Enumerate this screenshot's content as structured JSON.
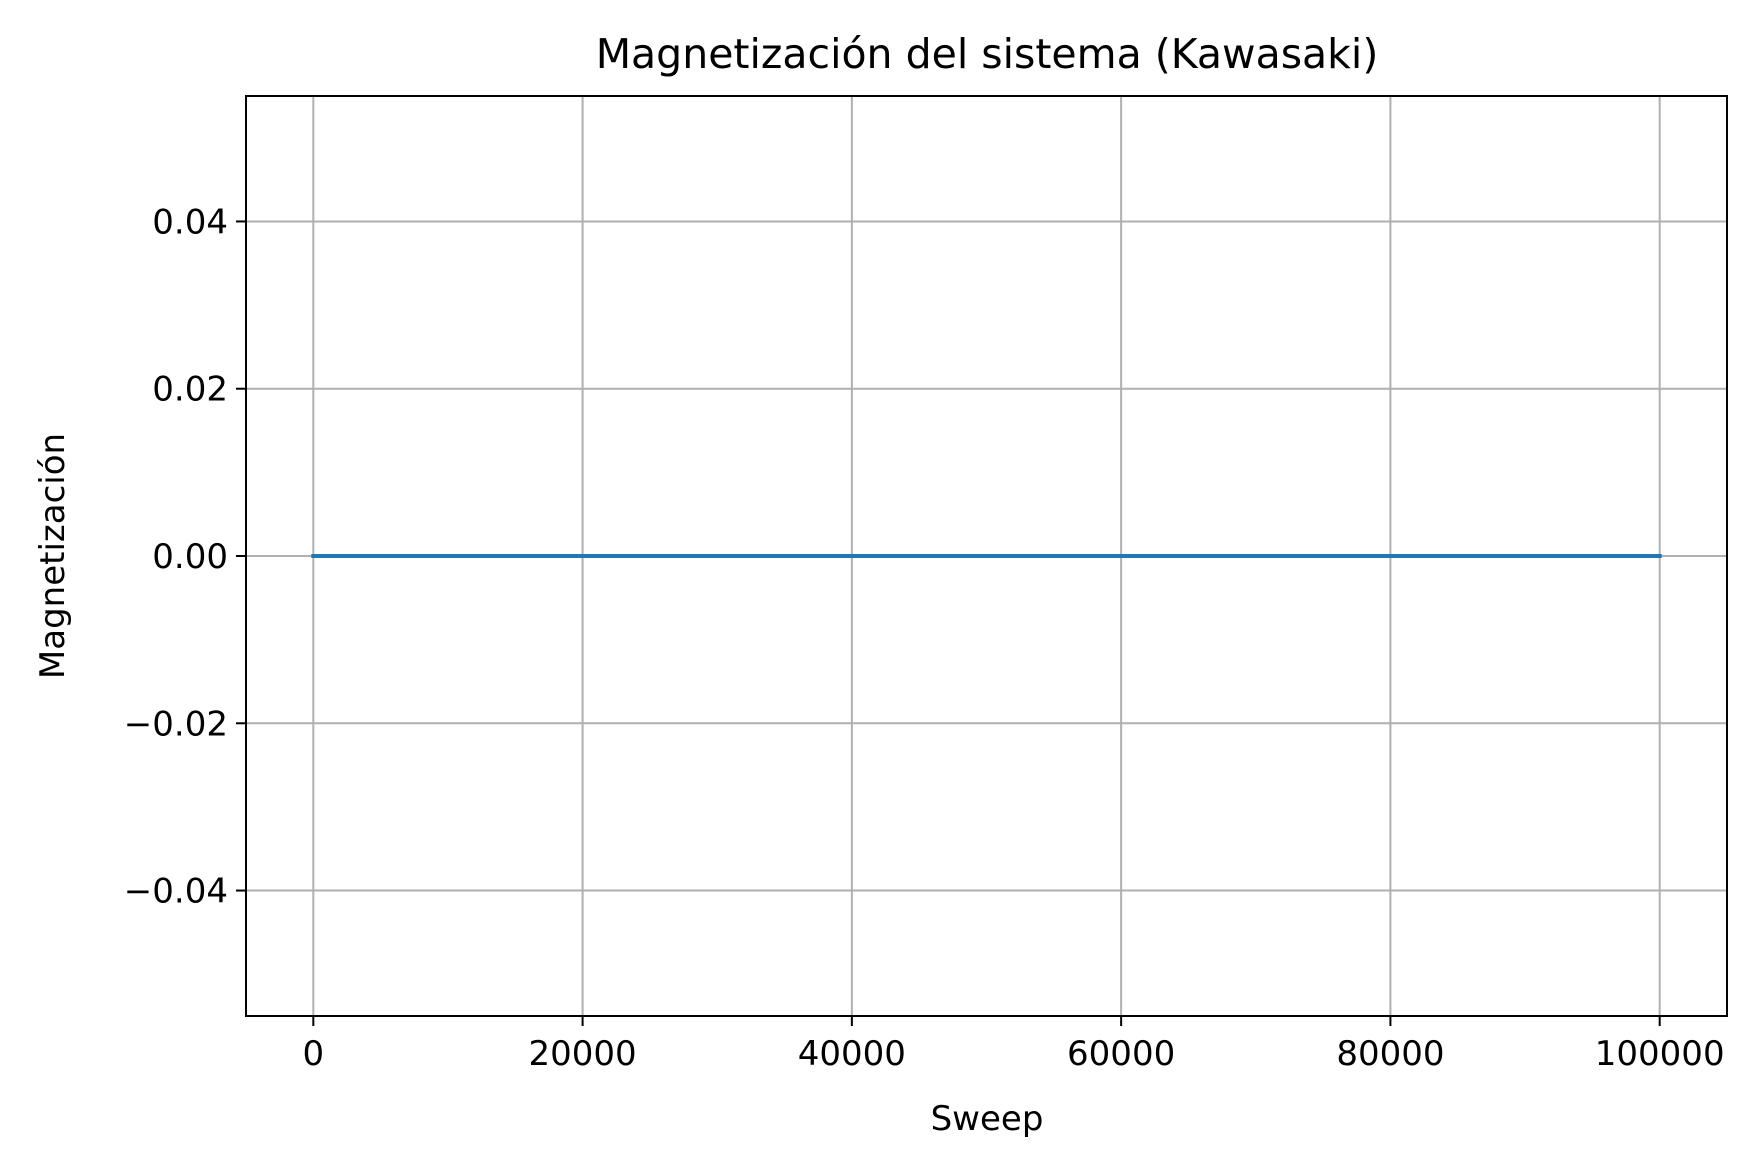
{
  "chart_data": {
    "type": "line",
    "title": "Magnetización del sistema (Kawasaki)",
    "xlabel": "Sweep",
    "ylabel": "Magnetización",
    "xlim": [
      -5000,
      105000
    ],
    "ylim": [
      -0.055,
      0.055
    ],
    "x_ticks": [
      0,
      20000,
      40000,
      60000,
      80000,
      100000
    ],
    "x_tick_labels": [
      "0",
      "20000",
      "40000",
      "60000",
      "80000",
      "100000"
    ],
    "y_ticks": [
      -0.04,
      -0.02,
      0.0,
      0.02,
      0.04
    ],
    "y_tick_labels": [
      "−0.04",
      "−0.02",
      "0.00",
      "0.02",
      "0.04"
    ],
    "grid": true,
    "series": [
      {
        "color": "#1f77b4",
        "x": [
          0,
          10000,
          20000,
          30000,
          40000,
          50000,
          60000,
          70000,
          80000,
          90000,
          100000
        ],
        "y": [
          0,
          0,
          0,
          0,
          0,
          0,
          0,
          0,
          0,
          0,
          0
        ]
      }
    ]
  }
}
